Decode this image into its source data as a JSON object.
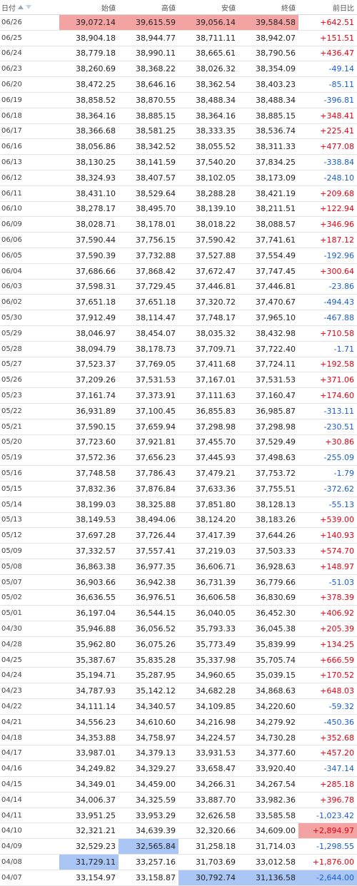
{
  "header": {
    "date": "日付",
    "open": "始値",
    "high": "高値",
    "low": "安値",
    "close": "終値",
    "change": "前日比"
  },
  "colors": {
    "positive": "#e60012",
    "negative": "#1a5fd1",
    "highlight_red": "#f4a3a3",
    "highlight_blue": "#a9c6f5"
  },
  "rows": [
    {
      "date": "06/26",
      "open": "39,072.14",
      "high": "39,615.59",
      "low": "39,056.14",
      "close": "39,584.58",
      "change": "+642.51",
      "hl": {
        "open": "red",
        "high": "red",
        "low": "red",
        "close": "red"
      }
    },
    {
      "date": "06/25",
      "open": "38,904.18",
      "high": "38,944.77",
      "low": "38,711.11",
      "close": "38,942.07",
      "change": "+151.51"
    },
    {
      "date": "06/24",
      "open": "38,779.18",
      "high": "38,990.11",
      "low": "38,665.61",
      "close": "38,790.56",
      "change": "+436.47"
    },
    {
      "date": "06/23",
      "open": "38,260.69",
      "high": "38,368.22",
      "low": "38,026.32",
      "close": "38,354.09",
      "change": "-49.14"
    },
    {
      "date": "06/20",
      "open": "38,472.25",
      "high": "38,646.16",
      "low": "38,362.54",
      "close": "38,403.23",
      "change": "-85.11"
    },
    {
      "date": "06/19",
      "open": "38,858.52",
      "high": "38,870.55",
      "low": "38,488.34",
      "close": "38,488.34",
      "change": "-396.81"
    },
    {
      "date": "06/18",
      "open": "38,364.16",
      "high": "38,885.15",
      "low": "38,364.16",
      "close": "38,885.15",
      "change": "+348.41"
    },
    {
      "date": "06/17",
      "open": "38,366.68",
      "high": "38,581.25",
      "low": "38,333.35",
      "close": "38,536.74",
      "change": "+225.41"
    },
    {
      "date": "06/16",
      "open": "38,056.86",
      "high": "38,342.52",
      "low": "38,055.52",
      "close": "38,311.33",
      "change": "+477.08"
    },
    {
      "date": "06/13",
      "open": "38,130.25",
      "high": "38,141.59",
      "low": "37,540.20",
      "close": "37,834.25",
      "change": "-338.84"
    },
    {
      "date": "06/12",
      "open": "38,324.93",
      "high": "38,407.57",
      "low": "38,102.05",
      "close": "38,173.09",
      "change": "-248.10"
    },
    {
      "date": "06/11",
      "open": "38,431.10",
      "high": "38,529.64",
      "low": "38,288.28",
      "close": "38,421.19",
      "change": "+209.68"
    },
    {
      "date": "06/10",
      "open": "38,278.17",
      "high": "38,495.70",
      "low": "38,139.10",
      "close": "38,211.51",
      "change": "+122.94"
    },
    {
      "date": "06/09",
      "open": "38,028.71",
      "high": "38,178.01",
      "low": "38,018.22",
      "close": "38,088.57",
      "change": "+346.96"
    },
    {
      "date": "06/06",
      "open": "37,590.44",
      "high": "37,756.15",
      "low": "37,590.42",
      "close": "37,741.61",
      "change": "+187.12"
    },
    {
      "date": "06/05",
      "open": "37,590.39",
      "high": "37,732.88",
      "low": "37,527.88",
      "close": "37,554.49",
      "change": "-192.96"
    },
    {
      "date": "06/04",
      "open": "37,686.66",
      "high": "37,868.42",
      "low": "37,672.47",
      "close": "37,747.45",
      "change": "+300.64"
    },
    {
      "date": "06/03",
      "open": "37,598.31",
      "high": "37,729.45",
      "low": "37,446.81",
      "close": "37,446.81",
      "change": "-23.86"
    },
    {
      "date": "06/02",
      "open": "37,651.18",
      "high": "37,651.18",
      "low": "37,320.72",
      "close": "37,470.67",
      "change": "-494.43"
    },
    {
      "date": "05/30",
      "open": "37,912.49",
      "high": "38,114.47",
      "low": "37,748.17",
      "close": "37,965.10",
      "change": "-467.88"
    },
    {
      "date": "05/29",
      "open": "38,046.97",
      "high": "38,454.07",
      "low": "38,035.32",
      "close": "38,432.98",
      "change": "+710.58"
    },
    {
      "date": "05/28",
      "open": "38,094.79",
      "high": "38,178.73",
      "low": "37,709.71",
      "close": "37,722.40",
      "change": "-1.71"
    },
    {
      "date": "05/27",
      "open": "37,523.37",
      "high": "37,769.05",
      "low": "37,411.68",
      "close": "37,724.11",
      "change": "+192.58"
    },
    {
      "date": "05/26",
      "open": "37,209.26",
      "high": "37,531.53",
      "low": "37,167.01",
      "close": "37,531.53",
      "change": "+371.06"
    },
    {
      "date": "05/23",
      "open": "37,161.74",
      "high": "37,373.91",
      "low": "37,111.63",
      "close": "37,160.47",
      "change": "+174.60"
    },
    {
      "date": "05/22",
      "open": "36,931.89",
      "high": "37,100.45",
      "low": "36,855.83",
      "close": "36,985.87",
      "change": "-313.11"
    },
    {
      "date": "05/21",
      "open": "37,590.15",
      "high": "37,659.94",
      "low": "37,298.98",
      "close": "37,298.98",
      "change": "-230.51"
    },
    {
      "date": "05/20",
      "open": "37,723.60",
      "high": "37,921.81",
      "low": "37,455.70",
      "close": "37,529.49",
      "change": "+30.86"
    },
    {
      "date": "05/19",
      "open": "37,572.36",
      "high": "37,656.23",
      "low": "37,445.93",
      "close": "37,498.63",
      "change": "-255.09"
    },
    {
      "date": "05/16",
      "open": "37,748.58",
      "high": "37,786.43",
      "low": "37,479.21",
      "close": "37,753.72",
      "change": "-1.79"
    },
    {
      "date": "05/15",
      "open": "37,832.36",
      "high": "37,876.84",
      "low": "37,633.36",
      "close": "37,755.51",
      "change": "-372.62"
    },
    {
      "date": "05/14",
      "open": "38,199.03",
      "high": "38,325.88",
      "low": "37,851.80",
      "close": "38,128.13",
      "change": "-55.13"
    },
    {
      "date": "05/13",
      "open": "38,149.53",
      "high": "38,494.06",
      "low": "38,124.20",
      "close": "38,183.26",
      "change": "+539.00"
    },
    {
      "date": "05/12",
      "open": "37,697.28",
      "high": "37,726.44",
      "low": "37,417.39",
      "close": "37,644.26",
      "change": "+140.93"
    },
    {
      "date": "05/09",
      "open": "37,332.57",
      "high": "37,557.41",
      "low": "37,219.03",
      "close": "37,503.33",
      "change": "+574.70"
    },
    {
      "date": "05/08",
      "open": "36,863.38",
      "high": "36,977.35",
      "low": "36,606.71",
      "close": "36,928.63",
      "change": "+148.97"
    },
    {
      "date": "05/07",
      "open": "36,903.66",
      "high": "36,942.38",
      "low": "36,731.39",
      "close": "36,779.66",
      "change": "-51.03"
    },
    {
      "date": "05/02",
      "open": "36,636.55",
      "high": "36,976.51",
      "low": "36,606.58",
      "close": "36,830.69",
      "change": "+378.39"
    },
    {
      "date": "05/01",
      "open": "36,197.04",
      "high": "36,544.15",
      "low": "36,040.05",
      "close": "36,452.30",
      "change": "+406.92"
    },
    {
      "date": "04/30",
      "open": "35,946.88",
      "high": "36,056.52",
      "low": "35,793.33",
      "close": "36,045.38",
      "change": "+205.39"
    },
    {
      "date": "04/28",
      "open": "35,962.80",
      "high": "36,075.26",
      "low": "35,773.49",
      "close": "35,839.99",
      "change": "+134.25"
    },
    {
      "date": "04/25",
      "open": "35,387.67",
      "high": "35,835.28",
      "low": "35,337.98",
      "close": "35,705.74",
      "change": "+666.59"
    },
    {
      "date": "04/24",
      "open": "35,194.71",
      "high": "35,287.95",
      "low": "34,960.65",
      "close": "35,039.15",
      "change": "+170.52"
    },
    {
      "date": "04/23",
      "open": "34,787.93",
      "high": "35,142.12",
      "low": "34,682.28",
      "close": "34,868.63",
      "change": "+648.03"
    },
    {
      "date": "04/22",
      "open": "34,111.14",
      "high": "34,340.57",
      "low": "34,109.85",
      "close": "34,220.60",
      "change": "-59.32"
    },
    {
      "date": "04/21",
      "open": "34,556.23",
      "high": "34,610.60",
      "low": "34,216.98",
      "close": "34,279.92",
      "change": "-450.36"
    },
    {
      "date": "04/18",
      "open": "34,353.88",
      "high": "34,758.97",
      "low": "34,224.57",
      "close": "34,730.28",
      "change": "+352.68"
    },
    {
      "date": "04/17",
      "open": "33,987.01",
      "high": "34,379.13",
      "low": "33,931.53",
      "close": "34,377.60",
      "change": "+457.20"
    },
    {
      "date": "04/16",
      "open": "34,249.82",
      "high": "34,329.27",
      "low": "33,658.47",
      "close": "33,920.40",
      "change": "-347.14"
    },
    {
      "date": "04/15",
      "open": "34,349.01",
      "high": "34,459.00",
      "low": "34,266.31",
      "close": "34,267.54",
      "change": "+285.18"
    },
    {
      "date": "04/14",
      "open": "34,006.37",
      "high": "34,325.59",
      "low": "33,887.70",
      "close": "33,982.36",
      "change": "+396.78"
    },
    {
      "date": "04/11",
      "open": "33,951.25",
      "high": "33,953.29",
      "low": "32,626.58",
      "close": "33,585.58",
      "change": "-1,023.42"
    },
    {
      "date": "04/10",
      "open": "32,321.21",
      "high": "34,639.39",
      "low": "32,320.66",
      "close": "34,609.00",
      "change": "+2,894.97",
      "hl": {
        "change": "red"
      }
    },
    {
      "date": "04/09",
      "open": "32,529.23",
      "high": "32,565.84",
      "low": "31,258.18",
      "close": "31,714.03",
      "change": "-1,298.55",
      "hl": {
        "high": "blue"
      }
    },
    {
      "date": "04/08",
      "open": "31,729.11",
      "high": "33,257.16",
      "low": "31,703.69",
      "close": "33,012.58",
      "change": "+1,876.00",
      "hl": {
        "open": "blue"
      }
    },
    {
      "date": "04/07",
      "open": "33,154.97",
      "high": "33,158.87",
      "low": "30,792.74",
      "close": "31,136.58",
      "change": "-2,644.00",
      "hl": {
        "low": "blue",
        "close": "blue",
        "change": "blue"
      }
    }
  ]
}
